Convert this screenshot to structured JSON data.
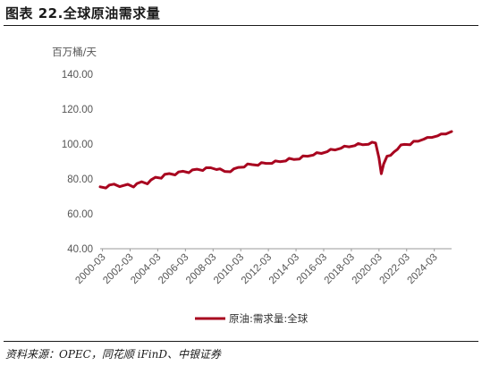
{
  "header": {
    "title": "图表 22.全球原油需求量"
  },
  "footer": {
    "source": "资料来源：OPEC，同花顺 iFinD、中银证券"
  },
  "chart_data": {
    "type": "line",
    "title": "图表 22.全球原油需求量",
    "ylabel": "百万桶/天",
    "xlabel": "",
    "ylim": [
      40,
      140
    ],
    "yticks": [
      "140.00",
      "120.00",
      "100.00",
      "80.00",
      "60.00",
      "40.00"
    ],
    "xticks": [
      "2000-03",
      "2002-03",
      "2004-03",
      "2006-03",
      "2008-03",
      "2010-03",
      "2012-03",
      "2014-03",
      "2016-03",
      "2018-03",
      "2020-03",
      "2022-03",
      "2024-03"
    ],
    "x_range": [
      "2000-01",
      "2025-06"
    ],
    "grid": false,
    "legend": "bottom-center",
    "series": [
      {
        "name": "原油:需求量:全球",
        "color": "#a8051f",
        "points": [
          [
            "2000-01",
            75.5
          ],
          [
            "2000-06",
            74.8
          ],
          [
            "2000-09",
            76.5
          ],
          [
            "2001-01",
            77.0
          ],
          [
            "2001-06",
            75.6
          ],
          [
            "2001-09",
            76.2
          ],
          [
            "2002-01",
            76.9
          ],
          [
            "2002-06",
            75.4
          ],
          [
            "2002-09",
            77.4
          ],
          [
            "2003-01",
            78.4
          ],
          [
            "2003-06",
            77.2
          ],
          [
            "2003-09",
            79.4
          ],
          [
            "2004-01",
            81.0
          ],
          [
            "2004-06",
            80.4
          ],
          [
            "2004-09",
            82.6
          ],
          [
            "2005-01",
            83.1
          ],
          [
            "2005-06",
            82.3
          ],
          [
            "2005-09",
            84.0
          ],
          [
            "2006-01",
            84.4
          ],
          [
            "2006-06",
            83.6
          ],
          [
            "2006-09",
            85.2
          ],
          [
            "2007-01",
            85.6
          ],
          [
            "2007-06",
            84.8
          ],
          [
            "2007-09",
            86.4
          ],
          [
            "2008-01",
            86.4
          ],
          [
            "2008-06",
            85.4
          ],
          [
            "2008-09",
            85.8
          ],
          [
            "2009-01",
            84.3
          ],
          [
            "2009-06",
            84.1
          ],
          [
            "2009-09",
            85.8
          ],
          [
            "2010-01",
            86.6
          ],
          [
            "2010-06",
            86.8
          ],
          [
            "2010-09",
            88.6
          ],
          [
            "2011-01",
            88.2
          ],
          [
            "2011-06",
            87.8
          ],
          [
            "2011-09",
            89.4
          ],
          [
            "2012-01",
            88.9
          ],
          [
            "2012-06",
            88.9
          ],
          [
            "2012-09",
            90.3
          ],
          [
            "2013-01",
            89.9
          ],
          [
            "2013-06",
            90.3
          ],
          [
            "2013-09",
            91.8
          ],
          [
            "2014-01",
            91.2
          ],
          [
            "2014-06",
            91.4
          ],
          [
            "2014-09",
            93.2
          ],
          [
            "2015-01",
            93.0
          ],
          [
            "2015-06",
            93.7
          ],
          [
            "2015-09",
            95.1
          ],
          [
            "2016-01",
            94.6
          ],
          [
            "2016-06",
            95.6
          ],
          [
            "2016-09",
            97.0
          ],
          [
            "2017-01",
            96.6
          ],
          [
            "2017-06",
            97.6
          ],
          [
            "2017-09",
            98.8
          ],
          [
            "2018-01",
            98.4
          ],
          [
            "2018-06",
            99.1
          ],
          [
            "2018-09",
            100.3
          ],
          [
            "2019-01",
            99.6
          ],
          [
            "2019-06",
            99.9
          ],
          [
            "2019-09",
            101.1
          ],
          [
            "2019-12",
            100.6
          ],
          [
            "2020-03",
            92.0
          ],
          [
            "2020-05",
            83.0
          ],
          [
            "2020-07",
            88.5
          ],
          [
            "2020-10",
            93.0
          ],
          [
            "2021-01",
            93.5
          ],
          [
            "2021-04",
            95.5
          ],
          [
            "2021-07",
            97.0
          ],
          [
            "2021-10",
            99.5
          ],
          [
            "2022-01",
            99.8
          ],
          [
            "2022-06",
            99.6
          ],
          [
            "2022-09",
            101.6
          ],
          [
            "2023-01",
            101.6
          ],
          [
            "2023-06",
            102.8
          ],
          [
            "2023-09",
            103.8
          ],
          [
            "2024-01",
            103.8
          ],
          [
            "2024-06",
            104.7
          ],
          [
            "2024-09",
            105.8
          ],
          [
            "2025-01",
            105.8
          ],
          [
            "2025-06",
            107.2
          ]
        ]
      }
    ]
  }
}
